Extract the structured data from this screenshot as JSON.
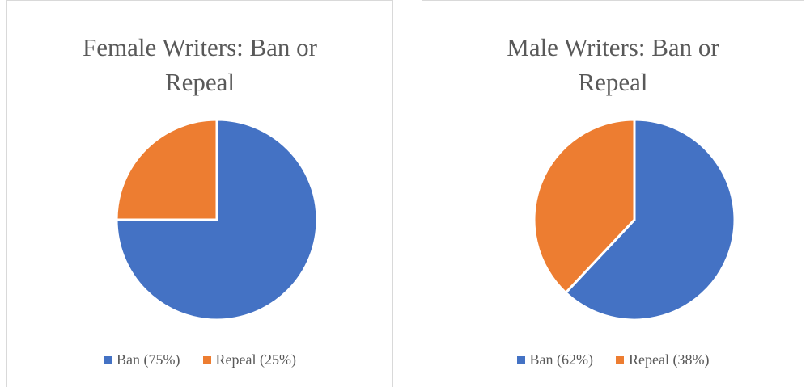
{
  "colors": {
    "ban": "#4472c4",
    "repeal": "#ed7d31",
    "slice_border": "#ffffff"
  },
  "chart_data": [
    {
      "type": "pie",
      "title_lines": [
        "Female Writers: Ban or",
        "Repeal"
      ],
      "categories": [
        "Ban",
        "Repeal"
      ],
      "values": [
        75,
        25
      ],
      "legend_labels": [
        "Ban (75%)",
        "Repeal (25%)"
      ],
      "legend_position": "bottom"
    },
    {
      "type": "pie",
      "title_lines": [
        "Male Writers: Ban or",
        "Repeal"
      ],
      "categories": [
        "Ban",
        "Repeal"
      ],
      "values": [
        62,
        38
      ],
      "legend_labels": [
        "Ban (62%)",
        "Repeal (38%)"
      ],
      "legend_position": "bottom"
    }
  ]
}
